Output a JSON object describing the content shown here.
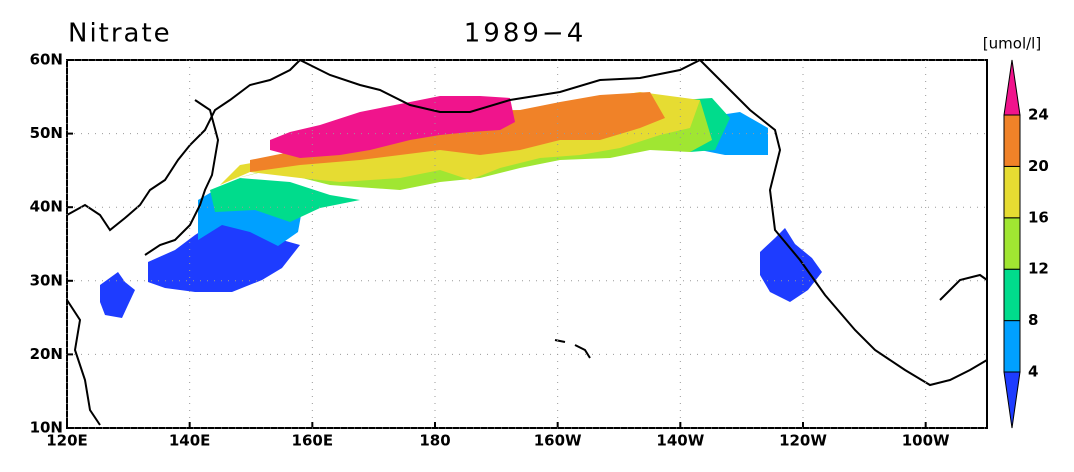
{
  "chart_data": {
    "type": "map",
    "title": "Nitrate",
    "subtitle": "1989−4",
    "colorbar_label": "[umol/l]",
    "xlim": [
      120,
      270
    ],
    "ylim": [
      10,
      60
    ],
    "xticks": [
      {
        "value": 120,
        "label": "120E"
      },
      {
        "value": 140,
        "label": "140E"
      },
      {
        "value": 160,
        "label": "160E"
      },
      180,
      {
        "value": 200,
        "label": "160W"
      },
      {
        "value": 220,
        "label": "140W"
      },
      {
        "value": 240,
        "label": "120W"
      },
      {
        "value": 260,
        "label": "100W"
      }
    ],
    "yticks": [
      {
        "value": 10,
        "label": "10N"
      },
      {
        "value": 20,
        "label": "20N"
      },
      {
        "value": 30,
        "label": "30N"
      },
      {
        "value": 40,
        "label": "40N"
      },
      {
        "value": 50,
        "label": "50N"
      },
      {
        "value": 60,
        "label": "60N"
      }
    ],
    "grid": true,
    "levels": [
      4,
      8,
      12,
      16,
      20,
      24
    ],
    "colors": [
      "#1e3cff",
      "#00a0ff",
      "#00dc8c",
      "#a0e632",
      "#e6dc32",
      "#f08228",
      "#f0148c"
    ]
  }
}
